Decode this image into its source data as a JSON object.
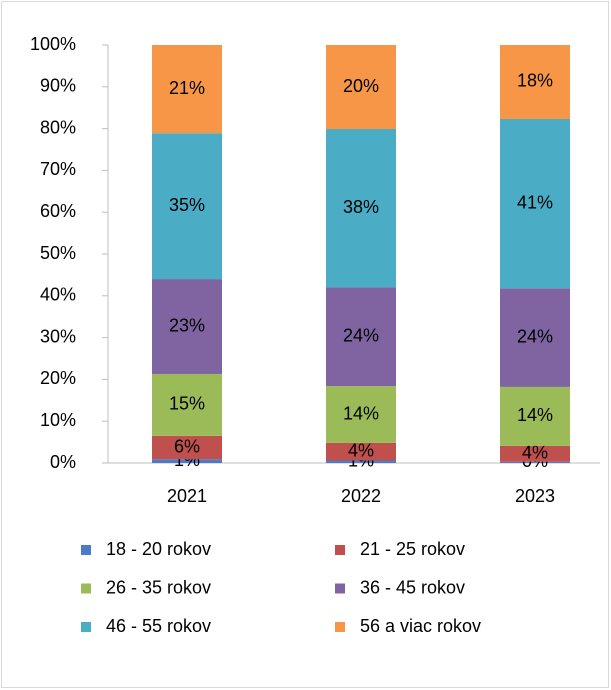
{
  "chart_data": {
    "type": "stacked_bar",
    "categories": [
      "2021",
      "2022",
      "2023"
    ],
    "series": [
      {
        "name": "18 - 20 rokov",
        "color": "#4e7ac7",
        "values": [
          0.9,
          0.6,
          0.3
        ],
        "value_labels": [
          "1%",
          "1%",
          "0%"
        ]
      },
      {
        "name": "21 - 25 rokov",
        "color": "#c0504d",
        "values": [
          5.6,
          4.2,
          3.8
        ],
        "value_labels": [
          "6%",
          "4%",
          "4%"
        ]
      },
      {
        "name": "26 - 35 rokov",
        "color": "#9bbb59",
        "values": [
          14.8,
          13.6,
          14.1
        ],
        "value_labels": [
          "15%",
          "14%",
          "14%"
        ]
      },
      {
        "name": "36 - 45 rokov",
        "color": "#8064a2",
        "values": [
          22.7,
          23.6,
          23.6
        ],
        "value_labels": [
          "23%",
          "24%",
          "24%"
        ]
      },
      {
        "name": "46 - 55 rokov",
        "color": "#4bacc6",
        "values": [
          34.9,
          37.9,
          40.5
        ],
        "value_labels": [
          "35%",
          "38%",
          "41%"
        ]
      },
      {
        "name": "56 a viac rokov",
        "color": "#f79646",
        "values": [
          21.1,
          20.1,
          17.7
        ],
        "value_labels": [
          "21%",
          "20%",
          "18%"
        ]
      }
    ],
    "ylim": [
      0,
      100
    ],
    "yticks": [
      {
        "value": 0,
        "label": "0%"
      },
      {
        "value": 10,
        "label": "10%"
      },
      {
        "value": 20,
        "label": "20%"
      },
      {
        "value": 30,
        "label": "30%"
      },
      {
        "value": 40,
        "label": "40%"
      },
      {
        "value": 50,
        "label": "50%"
      },
      {
        "value": 60,
        "label": "60%"
      },
      {
        "value": 70,
        "label": "70%"
      },
      {
        "value": 80,
        "label": "80%"
      },
      {
        "value": 90,
        "label": "90%"
      },
      {
        "value": 100,
        "label": "100%"
      }
    ],
    "legend": "bottom"
  }
}
